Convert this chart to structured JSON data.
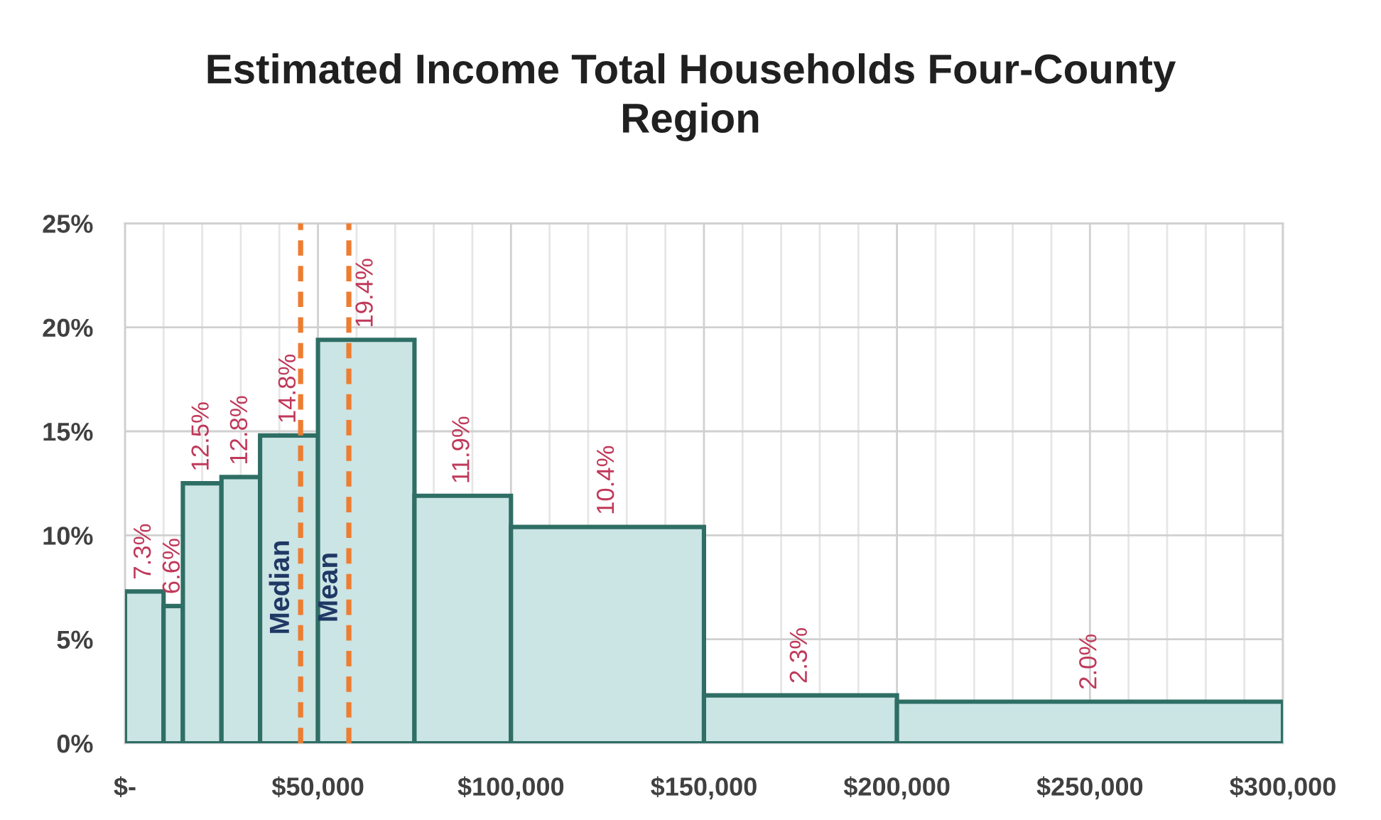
{
  "chart_data": {
    "type": "histogram",
    "title": "Estimated Income Total Households Four-County\nRegion",
    "bins": [
      0,
      10000,
      15000,
      25000,
      35000,
      50000,
      75000,
      100000,
      150000,
      200000,
      300000
    ],
    "values": [
      7.3,
      6.6,
      12.5,
      12.8,
      14.8,
      19.4,
      11.9,
      10.4,
      2.3,
      2.0
    ],
    "value_labels": [
      "7.3%",
      "6.6%",
      "12.5%",
      "12.8%",
      "14.8%",
      "19.4%",
      "11.9%",
      "10.4%",
      "2.3%",
      "2.0%"
    ],
    "color": "#cbe4e4",
    "xlim": [
      0,
      300000
    ],
    "ylim": [
      0,
      25
    ],
    "xticks": [
      {
        "value": 0,
        "label": "$-"
      },
      {
        "value": 10000,
        "label": null
      },
      {
        "value": 20000,
        "label": null
      },
      {
        "value": 30000,
        "label": null
      },
      {
        "value": 40000,
        "label": null
      },
      {
        "value": 50000,
        "label": "$50,000"
      },
      {
        "value": 60000,
        "label": null
      },
      {
        "value": 70000,
        "label": null
      },
      {
        "value": 80000,
        "label": null
      },
      {
        "value": 90000,
        "label": null
      },
      {
        "value": 100000,
        "label": "$100,000"
      },
      {
        "value": 110000,
        "label": null
      },
      {
        "value": 120000,
        "label": null
      },
      {
        "value": 130000,
        "label": null
      },
      {
        "value": 140000,
        "label": null
      },
      {
        "value": 150000,
        "label": "$150,000"
      },
      {
        "value": 160000,
        "label": null
      },
      {
        "value": 170000,
        "label": null
      },
      {
        "value": 180000,
        "label": null
      },
      {
        "value": 190000,
        "label": null
      },
      {
        "value": 200000,
        "label": "$200,000"
      },
      {
        "value": 210000,
        "label": null
      },
      {
        "value": 220000,
        "label": null
      },
      {
        "value": 230000,
        "label": null
      },
      {
        "value": 240000,
        "label": null
      },
      {
        "value": 250000,
        "label": "$250,000"
      },
      {
        "value": 260000,
        "label": null
      },
      {
        "value": 270000,
        "label": null
      },
      {
        "value": 280000,
        "label": null
      },
      {
        "value": 290000,
        "label": null
      },
      {
        "value": 300000,
        "label": "$300,000"
      }
    ],
    "yticks": [
      {
        "value": 0,
        "label": "0%"
      },
      {
        "value": 5,
        "label": "5%"
      },
      {
        "value": 10,
        "label": "10%"
      },
      {
        "value": 15,
        "label": "15%"
      },
      {
        "value": 20,
        "label": "20%"
      },
      {
        "value": 25,
        "label": "25%"
      }
    ],
    "grid": true,
    "ref_lines": [
      {
        "axis": "x",
        "value": 45500,
        "label": "Median",
        "color": "#ed7d31",
        "line_style": "dashed"
      },
      {
        "axis": "x",
        "value": 58000,
        "label": "Mean",
        "color": "#ed7d31",
        "line_style": "dashed"
      }
    ]
  }
}
